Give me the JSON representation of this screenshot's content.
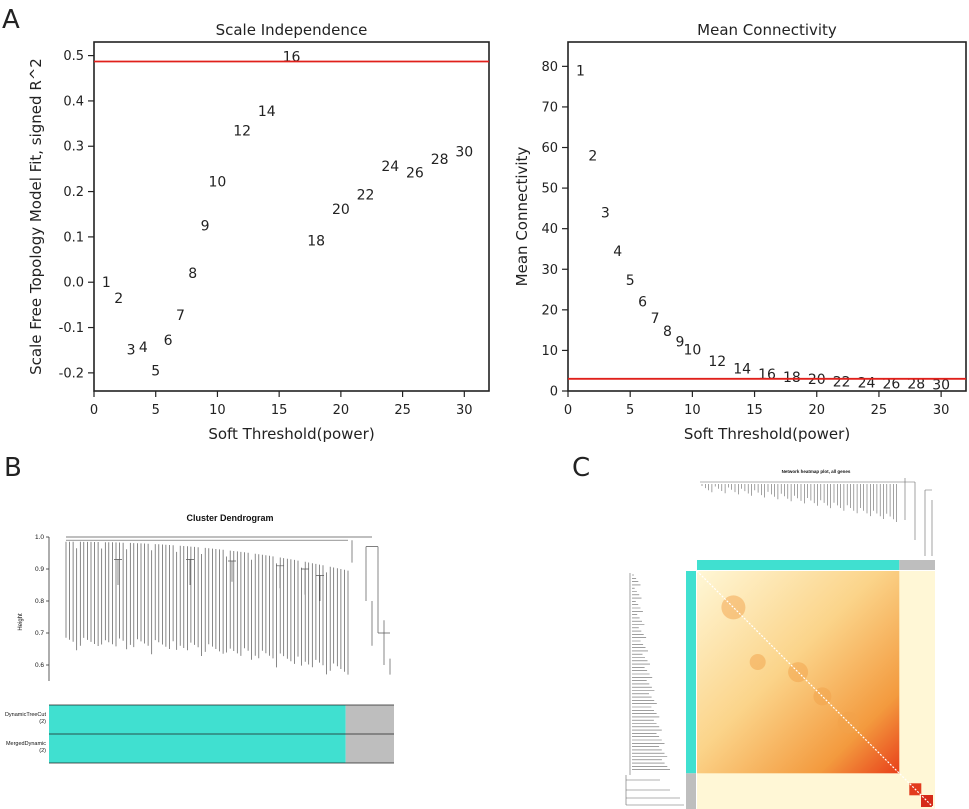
{
  "panels": {
    "A": "A",
    "B": "B",
    "C": "C"
  },
  "colors": {
    "threshold_line": "#e0201b",
    "turquoise": "#40e0d0",
    "grey": "#bebebe",
    "heat_low": "#fff7d6",
    "heat_high": "#e8401a"
  },
  "chart_data": [
    {
      "id": "scale-independence",
      "type": "scatter",
      "marker": "text-labels",
      "title": "Scale Independence",
      "xlabel": "Soft Threshold(power)",
      "ylabel": "Scale Free Topology Model Fit, signed R^2",
      "xlim": [
        0,
        32
      ],
      "ylim": [
        -0.24,
        0.53
      ],
      "xticks": [
        0,
        5,
        10,
        15,
        20,
        25,
        30
      ],
      "yticks": [
        -0.2,
        -0.1,
        0.0,
        0.1,
        0.2,
        0.3,
        0.4,
        0.5
      ],
      "ytick_labels": [
        "-0.2",
        "-0.1",
        "0.0",
        "0.1",
        "0.2",
        "0.3",
        "0.4",
        "0.5"
      ],
      "hline": 0.487,
      "points": [
        {
          "label": "1",
          "x": 1,
          "y": 0.0
        },
        {
          "label": "2",
          "x": 2,
          "y": -0.035
        },
        {
          "label": "3",
          "x": 3,
          "y": -0.148
        },
        {
          "label": "4",
          "x": 4,
          "y": -0.143
        },
        {
          "label": "5",
          "x": 5,
          "y": -0.195
        },
        {
          "label": "6",
          "x": 6,
          "y": -0.128
        },
        {
          "label": "7",
          "x": 7,
          "y": -0.072
        },
        {
          "label": "8",
          "x": 8,
          "y": 0.02
        },
        {
          "label": "9",
          "x": 9,
          "y": 0.125
        },
        {
          "label": "10",
          "x": 10,
          "y": 0.222
        },
        {
          "label": "12",
          "x": 12,
          "y": 0.335
        },
        {
          "label": "14",
          "x": 14,
          "y": 0.378
        },
        {
          "label": "16",
          "x": 16,
          "y": 0.498
        },
        {
          "label": "18",
          "x": 18,
          "y": 0.092
        },
        {
          "label": "20",
          "x": 20,
          "y": 0.162
        },
        {
          "label": "22",
          "x": 22,
          "y": 0.193
        },
        {
          "label": "24",
          "x": 24,
          "y": 0.256
        },
        {
          "label": "26",
          "x": 26,
          "y": 0.242
        },
        {
          "label": "28",
          "x": 28,
          "y": 0.272
        },
        {
          "label": "30",
          "x": 30,
          "y": 0.288
        }
      ]
    },
    {
      "id": "mean-connectivity",
      "type": "scatter",
      "marker": "text-labels",
      "title": "Mean Connectivity",
      "xlabel": "Soft Threshold(power)",
      "ylabel": "Mean Connectivity",
      "xlim": [
        0,
        32
      ],
      "ylim": [
        0,
        86
      ],
      "xticks": [
        0,
        5,
        10,
        15,
        20,
        25,
        30
      ],
      "yticks": [
        0,
        10,
        20,
        30,
        40,
        50,
        60,
        70,
        80
      ],
      "hline": 3,
      "points": [
        {
          "label": "1",
          "x": 1,
          "y": 79
        },
        {
          "label": "2",
          "x": 2,
          "y": 58
        },
        {
          "label": "3",
          "x": 3,
          "y": 44
        },
        {
          "label": "4",
          "x": 4,
          "y": 34.5
        },
        {
          "label": "5",
          "x": 5,
          "y": 27.3
        },
        {
          "label": "6",
          "x": 6,
          "y": 22
        },
        {
          "label": "7",
          "x": 7,
          "y": 18
        },
        {
          "label": "8",
          "x": 8,
          "y": 14.8
        },
        {
          "label": "9",
          "x": 9,
          "y": 12.2
        },
        {
          "label": "10",
          "x": 10,
          "y": 10.2
        },
        {
          "label": "12",
          "x": 12,
          "y": 7.4
        },
        {
          "label": "14",
          "x": 14,
          "y": 5.5
        },
        {
          "label": "16",
          "x": 16,
          "y": 4.2
        },
        {
          "label": "18",
          "x": 18,
          "y": 3.4
        },
        {
          "label": "20",
          "x": 20,
          "y": 2.9
        },
        {
          "label": "22",
          "x": 22,
          "y": 2.4
        },
        {
          "label": "24",
          "x": 24,
          "y": 2.1
        },
        {
          "label": "26",
          "x": 26,
          "y": 1.9
        },
        {
          "label": "28",
          "x": 28,
          "y": 1.8
        },
        {
          "label": "30",
          "x": 30,
          "y": 1.6
        }
      ]
    },
    {
      "id": "cluster-dendrogram",
      "type": "dendrogram",
      "title": "Cluster Dendrogram",
      "ylabel": "Height",
      "ylim": [
        0.55,
        1.0
      ],
      "yticks": [
        0.6,
        0.7,
        0.8,
        0.9,
        1.0
      ],
      "ytick_labels": [
        "0.6",
        "0.7",
        "0.8",
        "0.9",
        "1.0"
      ],
      "color_rows": [
        {
          "label": "DynamicTreeCut",
          "count": "(2)",
          "segments": [
            {
              "color": "turquoise",
              "fraction": 0.86
            },
            {
              "color": "grey",
              "fraction": 0.14
            }
          ]
        },
        {
          "label": "MergedDynamic",
          "count": "(2)",
          "segments": [
            {
              "color": "turquoise",
              "fraction": 0.86
            },
            {
              "color": "grey",
              "fraction": 0.14
            }
          ]
        }
      ]
    },
    {
      "id": "network-heatmap",
      "type": "heatmap",
      "title": "Network heatmap plot, all genes",
      "modules": [
        {
          "color": "turquoise",
          "fraction": 0.85
        },
        {
          "color": "grey",
          "fraction": 0.15
        }
      ]
    }
  ]
}
